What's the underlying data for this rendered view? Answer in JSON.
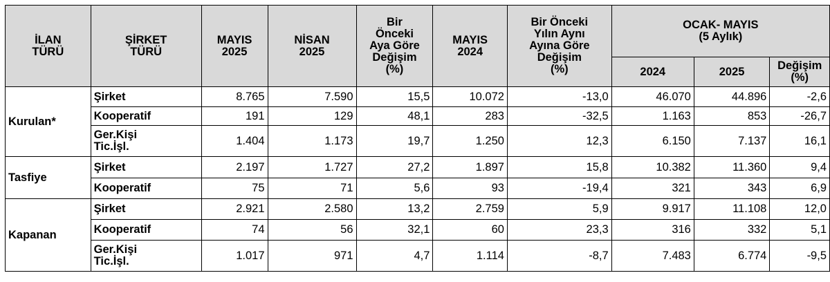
{
  "headers": {
    "ilan_turu": "İLAN\nTÜRÜ",
    "sirket_turu": "ŞİRKET\nTÜRÜ",
    "mayis_2025": "MAYIS\n2025",
    "nisan_2025": "NİSAN\n2025",
    "onceki_aya_gore": "Bir\nÖnceki\nAya Göre\nDeğişim\n(%)",
    "mayis_2024": "MAYIS\n2024",
    "onceki_yil_ayni_ay": "Bir Önceki\nYılın Aynı\nAyına Göre\nDeğişim\n(%)",
    "ocak_mayis": "OCAK- MAYIS\n(5 Aylık)",
    "y2024": "2024",
    "y2025": "2025",
    "degisim": "Değişim\n(%)"
  },
  "groups": [
    {
      "name": "Kurulan*",
      "rows": [
        {
          "type": "Şirket",
          "mayis_2025": "8.765",
          "nisan_2025": "7.590",
          "aya_gore": "15,5",
          "mayis_2024": "10.072",
          "yila_gore": "-13,0",
          "y2024": "46.070",
          "y2025": "44.896",
          "degisim": "-2,6"
        },
        {
          "type": "Kooperatif",
          "mayis_2025": "191",
          "nisan_2025": "129",
          "aya_gore": "48,1",
          "mayis_2024": "283",
          "yila_gore": "-32,5",
          "y2024": "1.163",
          "y2025": "853",
          "degisim": "-26,7"
        },
        {
          "type": "Ger.Kişi\nTic.İşl.",
          "mayis_2025": "1.404",
          "nisan_2025": "1.173",
          "aya_gore": "19,7",
          "mayis_2024": "1.250",
          "yila_gore": "12,3",
          "y2024": "6.150",
          "y2025": "7.137",
          "degisim": "16,1"
        }
      ]
    },
    {
      "name": "Tasfiye",
      "rows": [
        {
          "type": "Şirket",
          "mayis_2025": "2.197",
          "nisan_2025": "1.727",
          "aya_gore": "27,2",
          "mayis_2024": "1.897",
          "yila_gore": "15,8",
          "y2024": "10.382",
          "y2025": "11.360",
          "degisim": "9,4"
        },
        {
          "type": "Kooperatif",
          "mayis_2025": "75",
          "nisan_2025": "71",
          "aya_gore": "5,6",
          "mayis_2024": "93",
          "yila_gore": "-19,4",
          "y2024": "321",
          "y2025": "343",
          "degisim": "6,9"
        }
      ]
    },
    {
      "name": "Kapanan",
      "rows": [
        {
          "type": "Şirket",
          "mayis_2025": "2.921",
          "nisan_2025": "2.580",
          "aya_gore": "13,2",
          "mayis_2024": "2.759",
          "yila_gore": "5,9",
          "y2024": "9.917",
          "y2025": "11.108",
          "degisim": "12,0"
        },
        {
          "type": "Kooperatif",
          "mayis_2025": "74",
          "nisan_2025": "56",
          "aya_gore": "32,1",
          "mayis_2024": "60",
          "yila_gore": "23,3",
          "y2024": "316",
          "y2025": "332",
          "degisim": "5,1"
        },
        {
          "type": "Ger.Kişi\nTic.İşl.",
          "mayis_2025": "1.017",
          "nisan_2025": "971",
          "aya_gore": "4,7",
          "mayis_2024": "1.114",
          "yila_gore": "-8,7",
          "y2024": "7.483",
          "y2025": "6.774",
          "degisim": "-9,5"
        }
      ]
    }
  ]
}
